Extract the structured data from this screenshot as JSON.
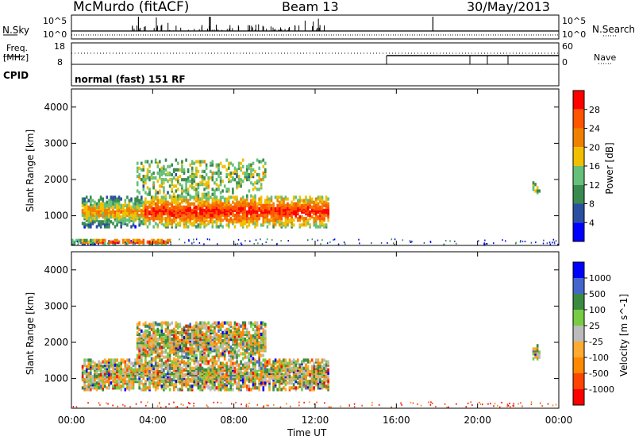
{
  "header": {
    "station": "McMurdo (fitACF)",
    "beam": "Beam 13",
    "date": "30/May/2013"
  },
  "noise_panel": {
    "left_label": "N.Sky",
    "left_tick_hi": "10^5",
    "left_tick_lo": "10^0",
    "right_label": "N.Search",
    "right_tick_hi": "10^5",
    "right_tick_lo": "10^0"
  },
  "freq_panel": {
    "left_label_line1": "Freq.",
    "left_label_line2": "[MHz]",
    "left_tick_hi": "18",
    "left_tick_lo": "8",
    "right_label": "Nave",
    "right_tick_hi": "60",
    "right_tick_lo": "0"
  },
  "cpid_panel": {
    "label": "CPID",
    "text": "normal (fast) 151 RF"
  },
  "colors": {
    "power_scale": [
      "#0000ff",
      "#2a4fa0",
      "#3a8a50",
      "#66c07a",
      "#f0c000",
      "#f08000",
      "#ff5500",
      "#ff0000"
    ],
    "velocity_scale": [
      "#ff0000",
      "#ff4400",
      "#ff8800",
      "#ffaa30",
      "#bbbbbb",
      "#77cc44",
      "#3a8a40",
      "#4466cc",
      "#0000ff"
    ]
  },
  "chart_data": [
    {
      "type": "heatmap",
      "title": "Power",
      "ylabel": "Slant Range [km]",
      "xlabel": "Time UT",
      "x_ticks": [
        "00:00",
        "04:00",
        "08:00",
        "12:00",
        "16:00",
        "20:00",
        "00:00"
      ],
      "y_ticks": [
        "1000",
        "2000",
        "3000",
        "4000"
      ],
      "ylim": [
        180,
        4500
      ],
      "xlim_hours": [
        0,
        24
      ],
      "colorbar_label": "Power [dB]",
      "colorbar_ticks": [
        "4",
        "8",
        "12",
        "16",
        "20",
        "24",
        "28"
      ],
      "colorbar_range": [
        0,
        32
      ],
      "scatter_regions": [
        {
          "x_hours": [
            0.5,
            12.6
          ],
          "range_km": [
            650,
            1500
          ],
          "level": "strong"
        },
        {
          "x_hours": [
            3.2,
            9.5
          ],
          "range_km": [
            1500,
            2500
          ],
          "level": "weak"
        },
        {
          "x_hours": [
            0.0,
            4.8
          ],
          "range_km": [
            180,
            300
          ],
          "level": "strong"
        },
        {
          "x_hours": [
            22.7,
            23.1
          ],
          "range_km": [
            1500,
            1900
          ],
          "level": "weak"
        }
      ]
    },
    {
      "type": "heatmap",
      "title": "Velocity",
      "ylabel": "Slant Range [km]",
      "xlabel": "Time UT",
      "x_ticks": [
        "00:00",
        "04:00",
        "08:00",
        "12:00",
        "16:00",
        "20:00",
        "00:00"
      ],
      "y_ticks": [
        "1000",
        "2000",
        "3000",
        "4000"
      ],
      "ylim": [
        180,
        4500
      ],
      "xlim_hours": [
        0,
        24
      ],
      "colorbar_label": "Velocity [m s^-1]",
      "colorbar_ticks": [
        "1000",
        "500",
        "100",
        "25",
        "-25",
        "-100",
        "-500",
        "-1000"
      ],
      "scatter_regions": [
        {
          "x_hours": [
            0.5,
            12.6
          ],
          "range_km": [
            650,
            1500
          ],
          "level": "mixed"
        },
        {
          "x_hours": [
            3.2,
            9.5
          ],
          "range_km": [
            1500,
            2500
          ],
          "level": "mixed"
        },
        {
          "x_hours": [
            22.7,
            23.1
          ],
          "range_km": [
            1500,
            1900
          ],
          "level": "mixed"
        }
      ]
    }
  ],
  "x_axis_label": "Time UT"
}
